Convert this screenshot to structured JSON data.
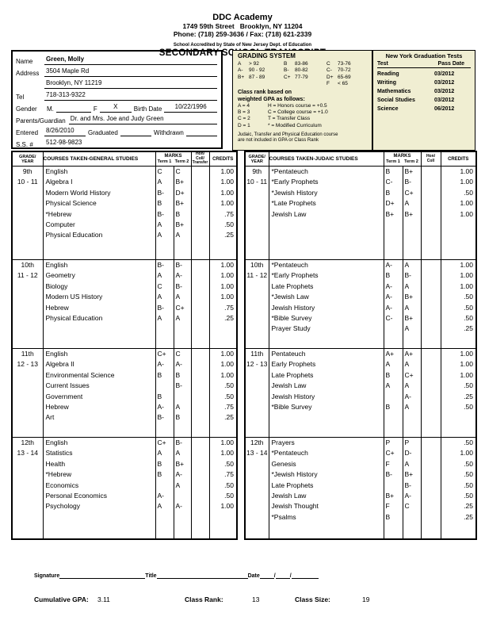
{
  "colors": {
    "box_fill": "#f0eed2",
    "border": "#000000"
  },
  "header": {
    "school_name": "DDC Academy",
    "address_line": "1749 59th Street   Brooklyn, NY 11204",
    "phone_line": "Phone: (718) 259-3636 / Fax: (718) 621-2339",
    "accreditation": "School Accredited by State of New Jersey Dept. of Education",
    "title": "SECONDARY SCHOOL TRANSCRIPT"
  },
  "student": {
    "name_label": "Name",
    "name": "Green, Molly",
    "address_label": "Address",
    "address1": "3504 Maple Rd",
    "address2": "Brooklyn, NY 11219",
    "tel_label": "Tel",
    "tel": "718-313-9322",
    "gender_label": "Gender",
    "gender_m_label": "M.",
    "gender_m_value": "",
    "gender_f_label": "F",
    "gender_f_value": "X",
    "birth_date_label": "Birth Date",
    "birth_date": "10/22/1996",
    "parents_label": "Parents/Guardian",
    "parents": "Dr. and Mrs. Joe and Judy Green",
    "entered_label": "Entered",
    "entered": "8/26/2010",
    "graduated_label": "Graduated",
    "graduated": "",
    "withdrawn_label": "Withdrawn",
    "withdrawn": "",
    "ssn_label": "S.S. #",
    "ssn": "512-98-9823"
  },
  "grading_system": {
    "title": "GRADING SYSTEM",
    "scale": [
      {
        "g1": "A",
        "r1": "> 92",
        "g2": "B",
        "r2": "83-86",
        "g3": "C",
        "r3": "73-76"
      },
      {
        "g1": "A-",
        "r1": "90 - 92",
        "g2": "B-",
        "r2": "80-82",
        "g3": "C-",
        "r3": "70-72"
      },
      {
        "g1": "B+",
        "r1": "87 - 89",
        "g2": "C+",
        "r2": "77-79",
        "g3": "D+",
        "r3": "65-69"
      },
      {
        "g1": "",
        "r1": "",
        "g2": "",
        "r2": "",
        "g3": "F",
        "r3": "< 65"
      }
    ],
    "rank_title1": "Class rank based on",
    "rank_title2": "weighted GPA as follows:",
    "rank_rows": [
      {
        "left": "A = 4",
        "right": "H = Honors course = +0.5"
      },
      {
        "left": "B = 3",
        "right": "C = College course = +1.0"
      },
      {
        "left": "C = 2",
        "right": "T = Transfer Class"
      },
      {
        "left": "D = 1",
        "right": "* = Modified Curriculum"
      }
    ],
    "footnote1": "Judaic, Transfer and Physical Education course",
    "footnote2": "are not included in GPA or Class Rank"
  },
  "graduation_tests": {
    "title": "New York Graduation Tests",
    "col_test": "Test",
    "col_pass_date": "Pass Date",
    "rows": [
      {
        "test": "Reading",
        "date": "03/2012"
      },
      {
        "test": "Writing",
        "date": "03/2012"
      },
      {
        "test": "Mathematics",
        "date": "03/2012"
      },
      {
        "test": "Social Studies",
        "date": "03/2012"
      },
      {
        "test": "Science",
        "date": "06/2012"
      }
    ]
  },
  "general_table": {
    "headers": {
      "grade1": "GRADE/",
      "grade2": "YEAR",
      "courses": "COURSES TAKEN-GENERAL STUDIES",
      "marks": "MARKS",
      "term1": "Term 1",
      "term2": "Term 2",
      "hon1": "Hon/",
      "hon2": "Coll/",
      "hon3": "Transfer",
      "credits": "CREDITS"
    },
    "sections": [
      {
        "grade": "9th",
        "years": "10 - 11",
        "rows": [
          {
            "course": "English",
            "t1": "C",
            "t2": "C",
            "hon": "",
            "cr": "1.00"
          },
          {
            "course": "Algebra I",
            "t1": "A",
            "t2": "B+",
            "hon": "",
            "cr": "1.00"
          },
          {
            "course": "Modern World History",
            "t1": "B-",
            "t2": "D+",
            "hon": "",
            "cr": "1.00"
          },
          {
            "course": "Physical Science",
            "t1": "B",
            "t2": "B+",
            "hon": "",
            "cr": "1.00"
          },
          {
            "course": "*Hebrew",
            "t1": "B-",
            "t2": "B",
            "hon": "",
            "cr": ".75"
          },
          {
            "course": "Computer",
            "t1": "A",
            "t2": "B+",
            "hon": "",
            "cr": ".50"
          },
          {
            "course": "Physical Education",
            "t1": "A",
            "t2": "A",
            "hon": "",
            "cr": ".25"
          }
        ]
      },
      {
        "grade": "10th",
        "years": "11 - 12",
        "rows": [
          {
            "course": "English",
            "t1": "B-",
            "t2": "B-",
            "hon": "",
            "cr": "1.00"
          },
          {
            "course": "Geometry",
            "t1": "A",
            "t2": "A-",
            "hon": "",
            "cr": "1.00"
          },
          {
            "course": "Biology",
            "t1": "C",
            "t2": "B-",
            "hon": "",
            "cr": "1.00"
          },
          {
            "course": "Modern US History",
            "t1": "A",
            "t2": "A",
            "hon": "",
            "cr": "1.00"
          },
          {
            "course": "Hebrew",
            "t1": "B-",
            "t2": "C+",
            "hon": "",
            "cr": ".75"
          },
          {
            "course": "Physical Education",
            "t1": "A",
            "t2": "A",
            "hon": "",
            "cr": ".25"
          }
        ]
      },
      {
        "grade": "11th",
        "years": "12 - 13",
        "rows": [
          {
            "course": "English",
            "t1": "C+",
            "t2": "C",
            "hon": "",
            "cr": "1.00"
          },
          {
            "course": "Algebra II",
            "t1": "A-",
            "t2": "A-",
            "hon": "",
            "cr": "1.00"
          },
          {
            "course": "Environmental Science",
            "t1": "B",
            "t2": "B",
            "hon": "",
            "cr": "1.00"
          },
          {
            "course": "Current Issues",
            "t1": "",
            "t2": "B-",
            "hon": "",
            "cr": ".50"
          },
          {
            "course": "Government",
            "t1": "B",
            "t2": "",
            "hon": "",
            "cr": ".50"
          },
          {
            "course": "Hebrew",
            "t1": "A-",
            "t2": "A",
            "hon": "",
            "cr": ".75"
          },
          {
            "course": "Art",
            "t1": "B-",
            "t2": "B",
            "hon": "",
            "cr": ".25"
          }
        ]
      },
      {
        "grade": "12th",
        "years": "13 - 14",
        "rows": [
          {
            "course": "English",
            "t1": "C+",
            "t2": "B-",
            "hon": "",
            "cr": "1.00"
          },
          {
            "course": "Statistics",
            "t1": "A",
            "t2": "A",
            "hon": "",
            "cr": "1.00"
          },
          {
            "course": "Health",
            "t1": "B",
            "t2": "B+",
            "hon": "",
            "cr": ".50"
          },
          {
            "course": "*Hebrew",
            "t1": "B",
            "t2": "A-",
            "hon": "",
            "cr": ".75"
          },
          {
            "course": "Economics",
            "t1": "",
            "t2": "A",
            "hon": "",
            "cr": ".50"
          },
          {
            "course": "Personal Economics",
            "t1": "A-",
            "t2": "",
            "hon": "",
            "cr": ".50"
          },
          {
            "course": "Psychology",
            "t1": "A",
            "t2": "A-",
            "hon": "",
            "cr": "1.00"
          }
        ]
      }
    ]
  },
  "judaic_table": {
    "headers": {
      "grade1": "GRADE/",
      "grade2": "YEAR",
      "courses": "COURSES TAKEN-JUDAIC STUDIES",
      "marks": "MARKS",
      "term1": "Term 1",
      "term2": "Term 2",
      "hon1": "Hon/",
      "hon2": "Coll",
      "hon3": "",
      "credits": "CREDITS"
    },
    "sections": [
      {
        "grade": "9th",
        "years": "10 - 11",
        "rows": [
          {
            "course": "*Pentateuch",
            "t1": "B",
            "t2": "B+",
            "hon": "",
            "cr": "1.00"
          },
          {
            "course": "*Early Prophets",
            "t1": "C-",
            "t2": "B-",
            "hon": "",
            "cr": "1.00"
          },
          {
            "course": "*Jewish History",
            "t1": "B",
            "t2": "C+",
            "hon": "",
            "cr": ".50"
          },
          {
            "course": "*Late Prophets",
            "t1": "D+",
            "t2": "A",
            "hon": "",
            "cr": "1.00"
          },
          {
            "course": "Jewish Law",
            "t1": "B+",
            "t2": "B+",
            "hon": "",
            "cr": "1.00"
          }
        ]
      },
      {
        "grade": "10th",
        "years": "11 - 12",
        "rows": [
          {
            "course": "*Pentateuch",
            "t1": "A-",
            "t2": "A",
            "hon": "",
            "cr": "1.00"
          },
          {
            "course": "*Early Prophets",
            "t1": "B",
            "t2": "B-",
            "hon": "",
            "cr": "1.00"
          },
          {
            "course": "Late Prophets",
            "t1": "A-",
            "t2": "A",
            "hon": "",
            "cr": "1.00"
          },
          {
            "course": "*Jewish Law",
            "t1": "A-",
            "t2": "B+",
            "hon": "",
            "cr": ".50"
          },
          {
            "course": "Jewish History",
            "t1": "A-",
            "t2": "A",
            "hon": "",
            "cr": ".50"
          },
          {
            "course": "*Bible Survey",
            "t1": "C-",
            "t2": "B+",
            "hon": "",
            "cr": ".50"
          },
          {
            "course": "Prayer Study",
            "t1": "",
            "t2": "A",
            "hon": "",
            "cr": ".25"
          }
        ]
      },
      {
        "grade": "11th",
        "years": "12 - 13",
        "rows": [
          {
            "course": "Pentateuch",
            "t1": "A+",
            "t2": "A+",
            "hon": "",
            "cr": "1.00"
          },
          {
            "course": "Early Prophets",
            "t1": "A",
            "t2": "A",
            "hon": "",
            "cr": "1.00"
          },
          {
            "course": "Late Prophets",
            "t1": "B",
            "t2": "C+",
            "hon": "",
            "cr": "1.00"
          },
          {
            "course": "Jewish Law",
            "t1": "A",
            "t2": "A",
            "hon": "",
            "cr": ".50"
          },
          {
            "course": "Jewish History",
            "t1": "",
            "t2": "A-",
            "hon": "",
            "cr": ".25"
          },
          {
            "course": "*Bible Survey",
            "t1": "B",
            "t2": "A",
            "hon": "",
            "cr": ".50"
          }
        ]
      },
      {
        "grade": "12th",
        "years": "13 - 14",
        "rows": [
          {
            "course": "Prayers",
            "t1": "P",
            "t2": "P",
            "hon": "",
            "cr": ".50"
          },
          {
            "course": "*Pentateuch",
            "t1": "C+",
            "t2": "D-",
            "hon": "",
            "cr": "1.00"
          },
          {
            "course": "Genesis",
            "t1": "F",
            "t2": "A",
            "hon": "",
            "cr": ".50"
          },
          {
            "course": "*Jewish History",
            "t1": "B-",
            "t2": "B+",
            "hon": "",
            "cr": ".50"
          },
          {
            "course": "Late Prophets",
            "t1": "",
            "t2": "B-",
            "hon": "",
            "cr": ".50"
          },
          {
            "course": "Jewish Law",
            "t1": "B+",
            "t2": "A-",
            "hon": "",
            "cr": ".50"
          },
          {
            "course": "Jewish Thought",
            "t1": "F",
            "t2": "C",
            "hon": "",
            "cr": ".25"
          },
          {
            "course": "*Psalms",
            "t1": "B",
            "t2": "",
            "hon": "",
            "cr": ".25"
          }
        ]
      }
    ]
  },
  "footer": {
    "sig_label": "Signature",
    "title_label": "Title",
    "date_label": "Date",
    "slash": "/",
    "gpa_label": "Cumulative GPA:",
    "gpa": "3.11",
    "rank_label": "Class Rank:",
    "rank": "13",
    "size_label": "Class Size:",
    "size": "19"
  }
}
